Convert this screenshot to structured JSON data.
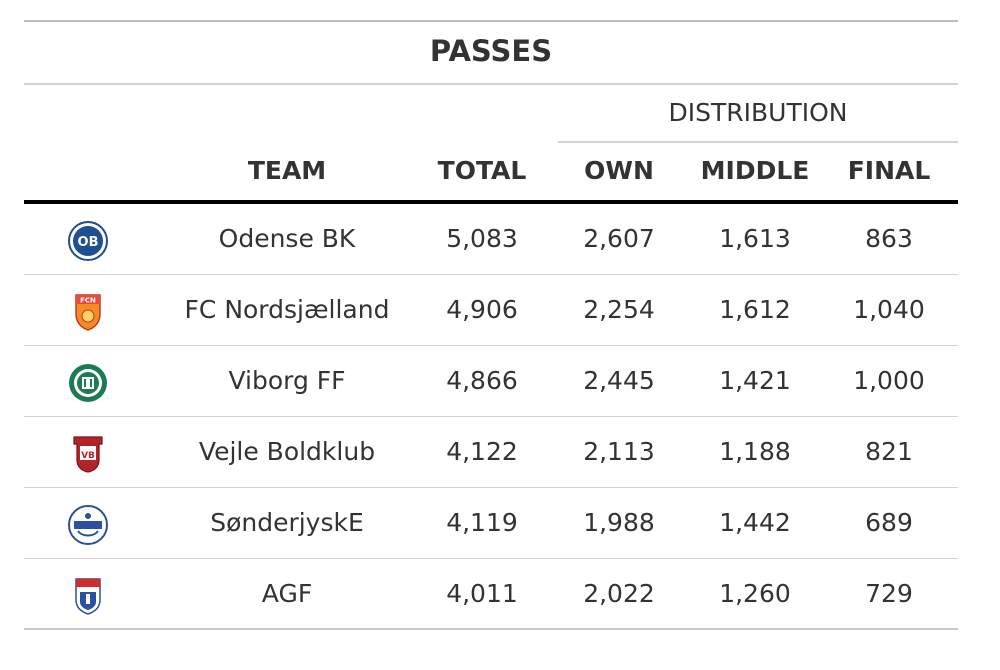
{
  "title": "PASSES",
  "spanner": "DISTRIBUTION",
  "columns": {
    "team": "TEAM",
    "total": "TOTAL",
    "own": "OWN",
    "middle": "MIDDLE",
    "final": "FINAL"
  },
  "chart_data": {
    "type": "table",
    "title": "PASSES",
    "columns": [
      "TEAM",
      "TOTAL",
      "OWN",
      "MIDDLE",
      "FINAL"
    ],
    "rows": [
      {
        "team": "Odense BK",
        "total": "5,083",
        "own": "2,607",
        "middle": "1,613",
        "final": "863",
        "logo": "odense-bk-crest-icon"
      },
      {
        "team": "FC Nordsjælland",
        "total": "4,906",
        "own": "2,254",
        "middle": "1,612",
        "final": "1,040",
        "logo": "fc-nordsjaelland-crest-icon"
      },
      {
        "team": "Viborg FF",
        "total": "4,866",
        "own": "2,445",
        "middle": "1,421",
        "final": "1,000",
        "logo": "viborg-ff-crest-icon"
      },
      {
        "team": "Vejle Boldklub",
        "total": "4,122",
        "own": "2,113",
        "middle": "1,188",
        "final": "821",
        "logo": "vejle-boldklub-crest-icon"
      },
      {
        "team": "SønderjyskE",
        "total": "4,119",
        "own": "1,988",
        "middle": "1,442",
        "final": "689",
        "logo": "sonderjyske-crest-icon"
      },
      {
        "team": "AGF",
        "total": "4,011",
        "own": "2,022",
        "middle": "1,260",
        "final": "729",
        "logo": "agf-crest-icon"
      }
    ]
  },
  "colors": {
    "odense": "#1d4f91",
    "nordsjaelland": "#f28c1e",
    "viborg": "#1e7a52",
    "vejle": "#b4232a",
    "sonderjyske": "#2c4f9e",
    "agf": "#d22b2b"
  }
}
